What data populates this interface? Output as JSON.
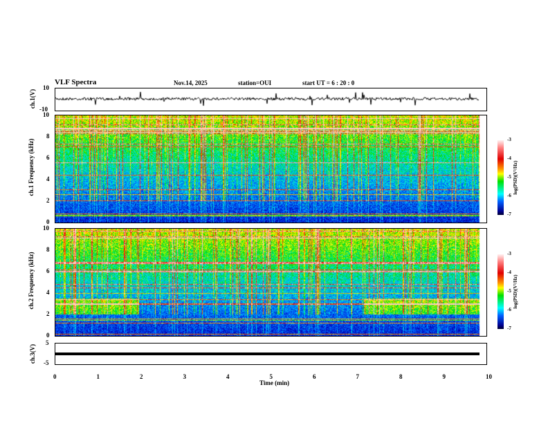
{
  "header": {
    "title": "VLF Spectra",
    "date": "Nov.14, 2025",
    "station": "station=OUI",
    "start": "start  UT =   6 : 20 : 0"
  },
  "chart_data": [
    {
      "type": "line",
      "name": "ch1 waveform",
      "ylabel": "ch.1(V)",
      "ylim": [
        -10,
        10
      ],
      "yticks": [
        "10",
        "-10"
      ],
      "description_values": "noise around 0 V with spikes"
    },
    {
      "type": "heatmap",
      "name": "ch1 spectrogram",
      "ylabel": "ch.1 Frequency (kHz)",
      "ylim": [
        0,
        10
      ],
      "yticks": [
        "10",
        "8",
        "6",
        "4",
        "2",
        "0"
      ],
      "colorbar": {
        "label": "log(PSD)(V²/Hz)",
        "range": [
          -7,
          -3
        ],
        "ticks": [
          "-3",
          "-4",
          "-5",
          "-6",
          "-7"
        ]
      }
    },
    {
      "type": "heatmap",
      "name": "ch2 spectrogram",
      "ylabel": "ch.2 Frequency (kHz)",
      "ylim": [
        0,
        10
      ],
      "yticks": [
        "10",
        "8",
        "6",
        "4",
        "2",
        "0"
      ],
      "colorbar": {
        "label": "log(PSD)(V²/Hz)",
        "range": [
          -7,
          -3
        ],
        "ticks": [
          "-3",
          "-4",
          "-5",
          "-6",
          "-7"
        ]
      }
    },
    {
      "type": "line",
      "name": "ch3 waveform",
      "ylabel": "ch.3(V)",
      "ylim": [
        -5,
        5
      ],
      "yticks": [
        "5",
        "-5"
      ],
      "x": [
        0,
        9.83
      ],
      "y": [
        -1.5,
        -1.5
      ]
    }
  ],
  "xaxis": {
    "label": "Time (min)",
    "xlim": [
      0,
      10
    ],
    "ticks": [
      "0",
      "1",
      "2",
      "3",
      "4",
      "5",
      "6",
      "7",
      "8",
      "9",
      "10"
    ]
  }
}
